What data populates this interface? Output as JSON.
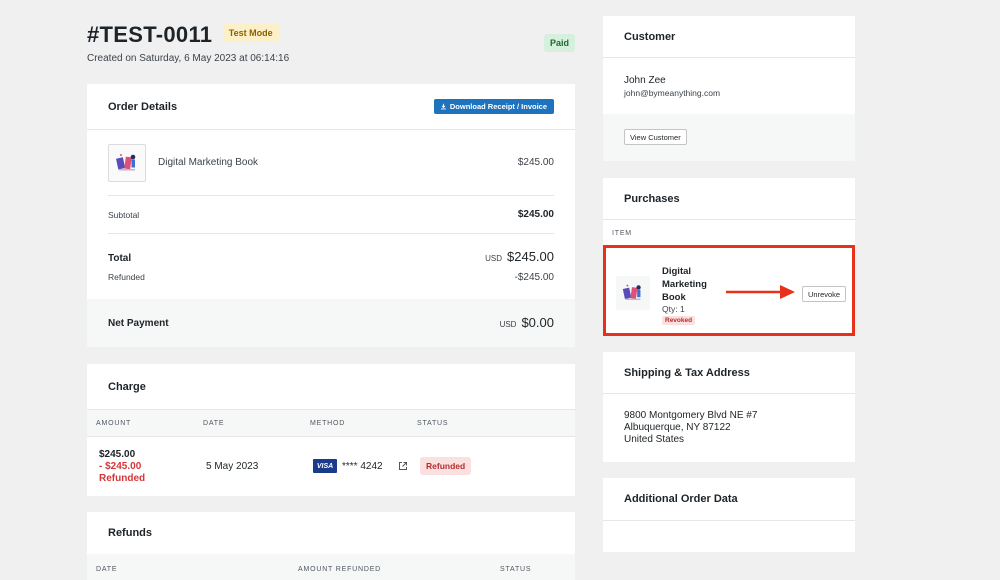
{
  "order": {
    "number": "#TEST-0011",
    "test_badge": "Test Mode",
    "created": "Created on Saturday, 6 May 2023 at 06:14:16",
    "status_badge": "Paid"
  },
  "order_details": {
    "title": "Order Details",
    "download_label": "Download Receipt / Invoice",
    "product": {
      "name": "Digital Marketing Book",
      "price": "$245.00"
    },
    "subtotal": {
      "label": "Subtotal",
      "value": "$245.00"
    },
    "total": {
      "label": "Total",
      "currency": "USD",
      "value": "$245.00"
    },
    "refunded": {
      "label": "Refunded",
      "value": "-$245.00"
    },
    "net": {
      "label": "Net Payment",
      "currency": "USD",
      "value": "$0.00"
    }
  },
  "charge": {
    "title": "Charge",
    "columns": [
      "AMOUNT",
      "DATE",
      "METHOD",
      "STATUS"
    ],
    "row": {
      "amount": "$245.00",
      "refund_amount": "- $245.00",
      "refund_label": "Refunded",
      "date": "5 May 2023",
      "card_brand": "VISA",
      "card_number": "**** 4242",
      "status": "Refunded"
    }
  },
  "refunds": {
    "title": "Refunds",
    "columns": [
      "DATE",
      "AMOUNT REFUNDED",
      "STATUS"
    ]
  },
  "customer": {
    "title": "Customer",
    "name": "John Zee",
    "email": "john@bymeanything.com",
    "view_label": "View Customer"
  },
  "purchases": {
    "title": "Purchases",
    "column": "ITEM",
    "item": {
      "name": "Digital Marketing Book",
      "qty": "Qty: 1",
      "status": "Revoked",
      "action_label": "Unrevoke"
    }
  },
  "shipping": {
    "title": "Shipping & Tax Address",
    "lines": [
      "9800 Montgomery Blvd NE #7",
      "Albuquerque, NY 87122",
      "United States"
    ]
  },
  "additional": {
    "title": "Additional Order Data"
  },
  "colors": {
    "accent": "#1e73be",
    "highlight": "#e8311a",
    "danger": "#d63638",
    "paid_bg": "#d6f0dd",
    "test_bg": "#fcf0c8"
  }
}
